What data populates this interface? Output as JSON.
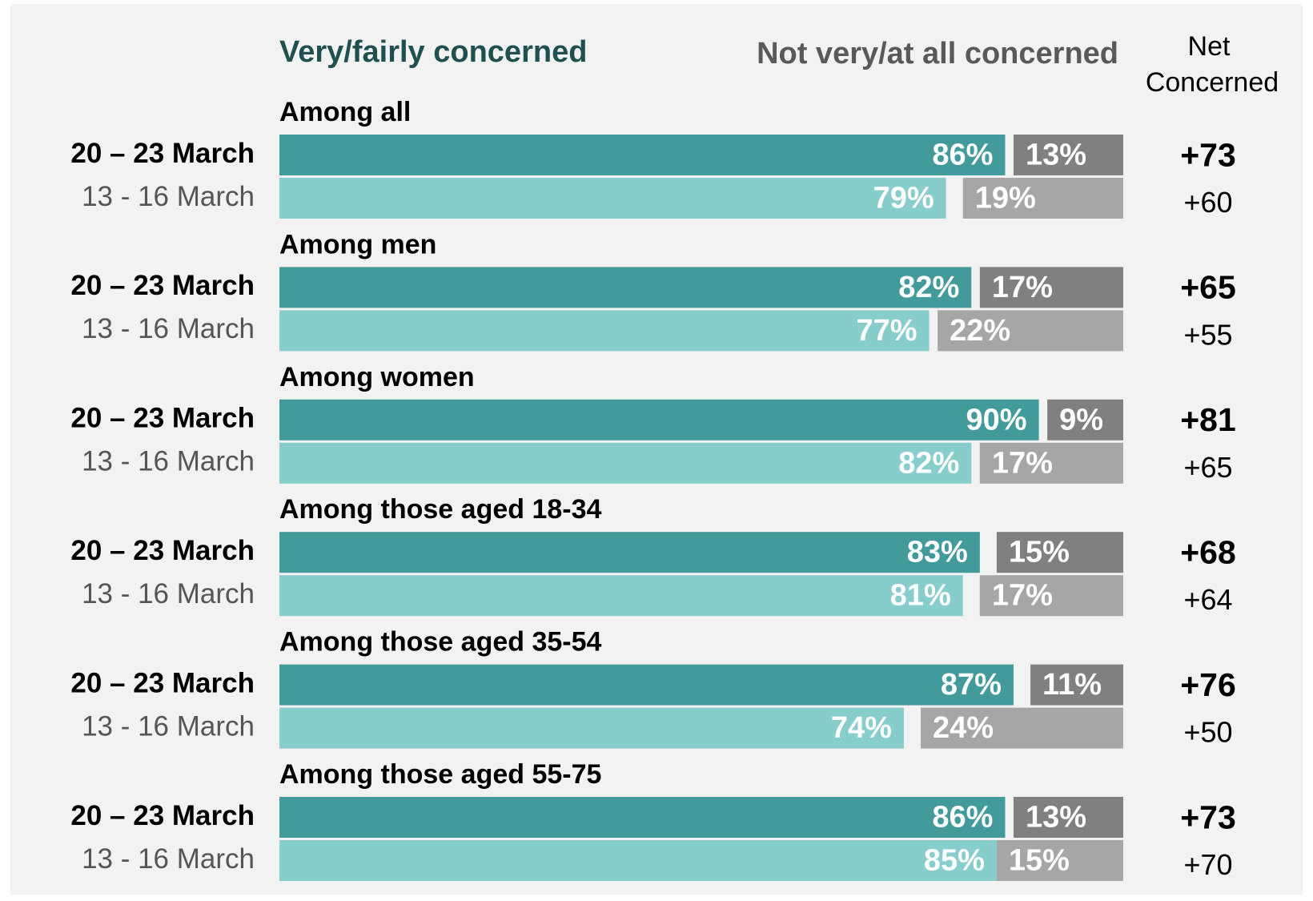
{
  "chart_data": {
    "type": "bar",
    "orientation": "horizontal",
    "xlim": [
      0,
      100
    ],
    "groups": [
      "Among all",
      "Among men",
      "Among women",
      "Among those aged 18-34",
      "Among those aged 35-54",
      "Among those aged 55-75"
    ],
    "categories": [
      "20 – 23 March",
      "13 - 16 March",
      "20 – 23 March",
      "13 - 16 March",
      "20 – 23 March",
      "13 - 16 March",
      "20 – 23 March",
      "13 - 16 March",
      "20 – 23 March",
      "13 - 16 March",
      "20 – 23 March",
      "13 - 16 March"
    ],
    "series": [
      {
        "name": "Very/fairly concerned",
        "colors": [
          "#429a9a",
          "#86cdcb"
        ],
        "anchor": "left",
        "values": [
          86,
          79,
          82,
          77,
          90,
          82,
          83,
          81,
          87,
          74,
          86,
          85
        ],
        "value_labels": [
          "86%",
          "79%",
          "82%",
          "77%",
          "90%",
          "82%",
          "83%",
          "81%",
          "87%",
          "74%",
          "86%",
          "85%"
        ]
      },
      {
        "name": "Not very/at all concerned",
        "colors": [
          "#808080",
          "#a6a6a6"
        ],
        "anchor": "right",
        "values": [
          13,
          19,
          17,
          22,
          9,
          17,
          15,
          17,
          11,
          24,
          13,
          15
        ],
        "value_labels": [
          "13%",
          "19%",
          "17%",
          "22%",
          "9%",
          "17%",
          "15%",
          "17%",
          "11%",
          "24%",
          "13%",
          "15%"
        ]
      }
    ],
    "net": {
      "name": [
        "Net",
        "Concerned"
      ],
      "values": [
        73,
        60,
        65,
        55,
        81,
        65,
        68,
        64,
        76,
        50,
        73,
        70
      ],
      "value_labels": [
        "+73",
        "+60",
        "+65",
        "+55",
        "+81",
        "+65",
        "+68",
        "+64",
        "+76",
        "+50",
        "+73",
        "+70"
      ]
    }
  }
}
